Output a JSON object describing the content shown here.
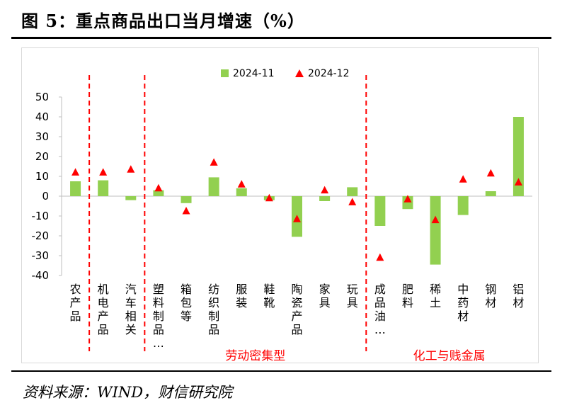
{
  "figure": {
    "title": "图 5：重点商品出口当月增速（%）",
    "source": "资料来源：WIND，财信研究院"
  },
  "colors": {
    "bar": "#92d050",
    "marker": "#ff0000",
    "divider": "#ff0000",
    "group_label": "#ff0000"
  },
  "chart_data": {
    "type": "bar",
    "title": "重点商品出口当月增速（%）",
    "xlabel": "",
    "ylabel": "",
    "ylim": [
      -40,
      50
    ],
    "yticks": [
      -40,
      -30,
      -20,
      -10,
      0,
      10,
      20,
      30,
      40,
      50
    ],
    "grid": false,
    "legend_position": "top-center",
    "categories": [
      "农产品",
      "机电产品",
      "汽车相关",
      "塑料制品…",
      "箱包等",
      "纺织制品",
      "服装",
      "鞋靴",
      "陶瓷产品",
      "家具",
      "玩具",
      "成品油…",
      "肥料",
      "稀土",
      "中药材",
      "钢材",
      "铝材"
    ],
    "series": [
      {
        "name": "2024-11",
        "kind": "bar",
        "values": [
          7.5,
          8,
          -2,
          3,
          -3.5,
          9.5,
          4,
          -2,
          -20.5,
          -2.5,
          4.5,
          -15,
          -6.5,
          -34.5,
          -9.5,
          2.5,
          40
        ]
      },
      {
        "name": "2024-12",
        "kind": "marker",
        "values": [
          12,
          12,
          13.5,
          4,
          -7.5,
          17,
          6,
          -1,
          -11.5,
          3,
          -3,
          -31,
          -1.5,
          -12,
          8.5,
          11.5,
          7
        ]
      }
    ],
    "groups": [
      {
        "label": "劳动密集型",
        "from": 3,
        "to": 10
      },
      {
        "label": "化工与贱金属",
        "from": 11,
        "to": 16
      }
    ],
    "dividers_after": [
      0,
      2,
      10
    ]
  }
}
